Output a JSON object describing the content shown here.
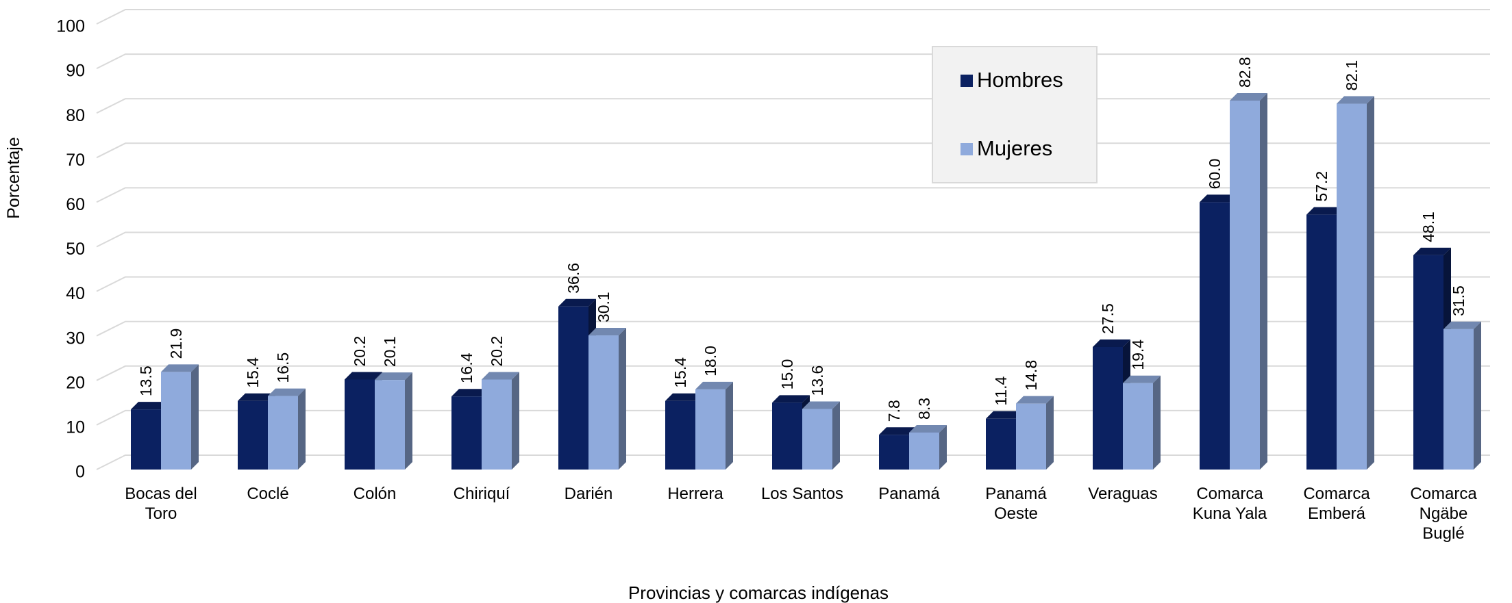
{
  "chart_data": {
    "type": "bar3d",
    "x_label": "Provincias y comarcas indígenas",
    "y_label": "Porcentaje",
    "categories": [
      "Bocas del Toro",
      "Coclé",
      "Colón",
      "Chiriquí",
      "Darién",
      "Herrera",
      "Los Santos",
      "Panamá",
      "Panamá Oeste",
      "Veraguas",
      "Comarca Kuna Yala",
      "Comarca Emberá",
      "Comarca Ngäbe Buglé"
    ],
    "series": [
      {
        "name": "Hombres",
        "color": "#0b2161",
        "values": [
          13.5,
          15.4,
          20.2,
          16.4,
          36.6,
          15.4,
          15.0,
          7.8,
          11.4,
          27.5,
          60.0,
          57.2,
          48.1
        ],
        "value_labels": [
          "13.5",
          "15.4",
          "20.2",
          "16.4",
          "36.6",
          "15.4",
          "15.0",
          "7.8",
          "11.4",
          "27.5",
          "60.0",
          "57.2",
          "48.1"
        ]
      },
      {
        "name": "Mujeres",
        "color": "#8faadc",
        "values": [
          21.9,
          16.5,
          20.1,
          20.2,
          30.1,
          18.0,
          13.6,
          8.3,
          14.8,
          19.4,
          82.8,
          82.1,
          31.5
        ],
        "value_labels": [
          "21.9",
          "16.5",
          "20.1",
          "20.2",
          "30.1",
          "18.0",
          "13.6",
          "8.3",
          "14.8",
          "19.4",
          "82.8",
          "82.1",
          "31.5"
        ]
      }
    ],
    "ylim": [
      0,
      100
    ],
    "yticks": [
      0,
      10,
      20,
      30,
      40,
      50,
      60,
      70,
      80,
      90,
      100
    ],
    "grid": true,
    "legend": "top-right"
  }
}
